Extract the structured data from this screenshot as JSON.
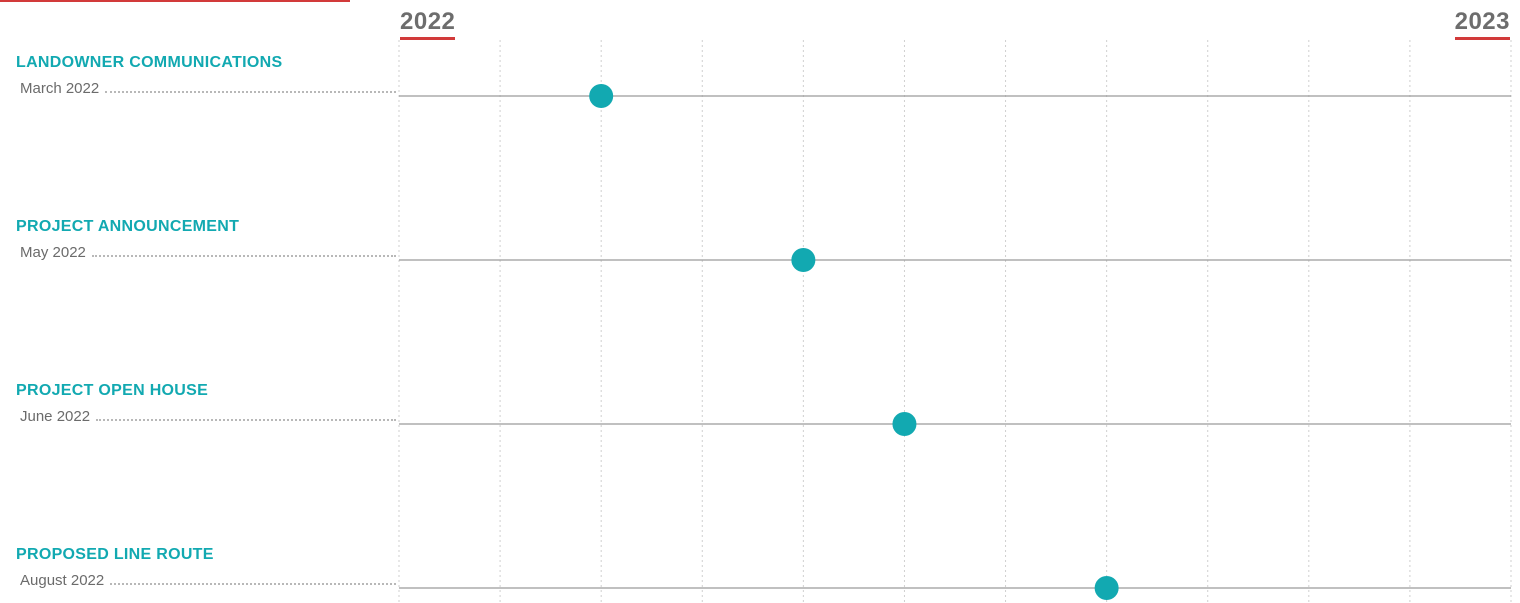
{
  "header": {
    "year_start": "2022",
    "year_end": "2023"
  },
  "colors": {
    "accent_red": "#d23a3a",
    "teal": "#12a9b1",
    "grid": "#cfcfcf",
    "row_line": "#9a9a9a",
    "date_text": "#6b6b6b",
    "year_text": "#6d6d6d"
  },
  "chart_data": {
    "type": "scatter",
    "title": "",
    "xlabel": "",
    "ylabel": "",
    "x_axis": {
      "start": "2022",
      "end": "2023",
      "divisions": 11
    },
    "grid": true,
    "milestones": [
      {
        "title": "LANDOWNER COMMUNICATIONS",
        "date": "March 2022",
        "month_index": 2
      },
      {
        "title": "PROJECT ANNOUNCEMENT",
        "date": "May 2022",
        "month_index": 4
      },
      {
        "title": "PROJECT OPEN HOUSE",
        "date": "June 2022",
        "month_index": 5
      },
      {
        "title": "PROPOSED LINE ROUTE",
        "date": "August 2022",
        "month_index": 7
      }
    ]
  }
}
